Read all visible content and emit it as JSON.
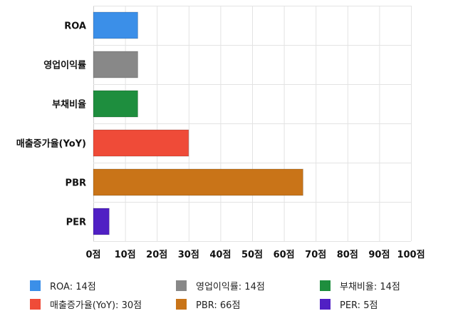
{
  "chart_data": {
    "type": "bar",
    "orientation": "horizontal",
    "categories": [
      "ROA",
      "영업이익률",
      "부채비율",
      "매출증가율(YoY)",
      "PBR",
      "PER"
    ],
    "values": [
      14,
      14,
      14,
      30,
      66,
      5
    ],
    "colors": [
      "#3b8fe8",
      "#888888",
      "#1e8e3e",
      "#ef4b38",
      "#c97418",
      "#5020c4"
    ],
    "xlim": [
      0,
      100
    ],
    "xticks": [
      0,
      10,
      20,
      30,
      40,
      50,
      60,
      70,
      80,
      90,
      100
    ],
    "tick_suffix": "점",
    "grid": true,
    "legend_position": "bottom",
    "legend": [
      {
        "label": "ROA: 14점",
        "color": "#3b8fe8"
      },
      {
        "label": "영업이익률: 14점",
        "color": "#888888"
      },
      {
        "label": "부채비율: 14점",
        "color": "#1e8e3e"
      },
      {
        "label": "매출증가율(YoY): 30점",
        "color": "#ef4b38"
      },
      {
        "label": "PBR: 66점",
        "color": "#c97418"
      },
      {
        "label": "PER: 5점",
        "color": "#5020c4"
      }
    ]
  }
}
